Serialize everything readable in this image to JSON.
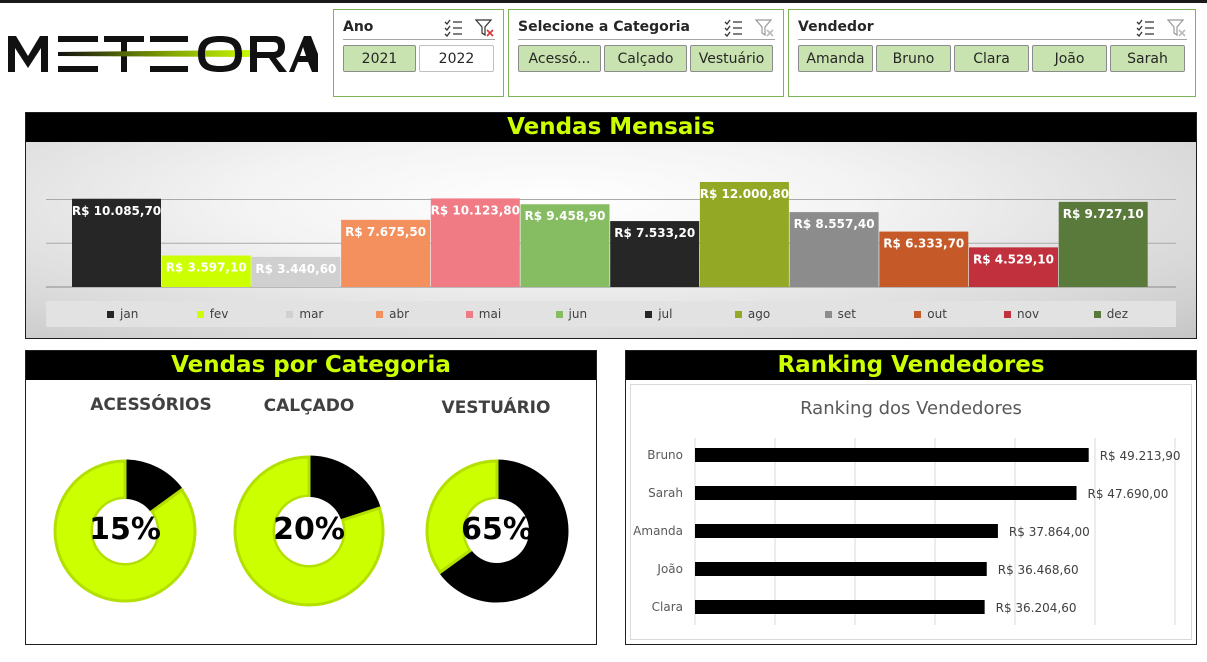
{
  "brand": {
    "logo_text": "METEORA",
    "accent": "#ccff00"
  },
  "slicers": {
    "ano": {
      "title": "Ano",
      "items": [
        {
          "label": "2021",
          "selected": true
        },
        {
          "label": "2022",
          "selected": false
        }
      ]
    },
    "categoria": {
      "title": "Selecione a Categoria",
      "items": [
        {
          "label": "Acessó...",
          "selected": true
        },
        {
          "label": "Calçado",
          "selected": true
        },
        {
          "label": "Vestuário",
          "selected": true
        }
      ]
    },
    "vendedor": {
      "title": "Vendedor",
      "items": [
        {
          "label": "Amanda",
          "selected": true
        },
        {
          "label": "Bruno",
          "selected": true
        },
        {
          "label": "Clara",
          "selected": true
        },
        {
          "label": "João",
          "selected": true
        },
        {
          "label": "Sarah",
          "selected": true
        }
      ]
    }
  },
  "monthly": {
    "title": "Vendas Mensais",
    "chart_data": {
      "type": "bar",
      "categories": [
        "jan",
        "fev",
        "mar",
        "abr",
        "mai",
        "jun",
        "jul",
        "ago",
        "set",
        "out",
        "nov",
        "dez"
      ],
      "values": [
        10085.7,
        3597.1,
        3440.6,
        7675.5,
        10123.8,
        9458.9,
        7533.2,
        12000.8,
        8557.4,
        6333.7,
        4529.1,
        9727.1
      ],
      "data_labels": [
        "R$ 10.085,70",
        "R$ 3.597,10",
        "R$ 3.440,60",
        "R$ 7.675,50",
        "R$ 10.123,80",
        "R$ 9.458,90",
        "R$ 7.533,20",
        "R$ 12.000,80",
        "R$ 8.557,40",
        "R$ 6.333,70",
        "R$ 4.529,10",
        "R$ 9.727,10"
      ],
      "colors": [
        "#262626",
        "#ccff00",
        "#d0d0d0",
        "#f4905d",
        "#f07b85",
        "#86bc62",
        "#262626",
        "#93a824",
        "#8c8c8c",
        "#c55a28",
        "#c0303d",
        "#5a7a3c"
      ],
      "label_colors": [
        "#ffffff",
        "#ffffff",
        "#ffffff",
        "#ffffff",
        "#ffffff",
        "#ffffff",
        "#ffffff",
        "#ffffff",
        "#ffffff",
        "#ffffff",
        "#ffffff",
        "#ffffff"
      ],
      "ylim": [
        0,
        12000
      ],
      "grid": true,
      "legend": "bottom"
    }
  },
  "categories_panel": {
    "title": "Vendas por Categoria",
    "chart_data": [
      {
        "type": "pie",
        "title": "ACESSÓRIOS",
        "label": "15%",
        "values": [
          15,
          85
        ],
        "colors": [
          "#000000",
          "#ccff00"
        ]
      },
      {
        "type": "pie",
        "title": "CALÇADO",
        "label": "20%",
        "values": [
          20,
          80
        ],
        "colors": [
          "#000000",
          "#ccff00"
        ]
      },
      {
        "type": "pie",
        "title": "VESTUÁRIO",
        "label": "65%",
        "values": [
          65,
          35
        ],
        "colors": [
          "#000000",
          "#ccff00"
        ]
      }
    ]
  },
  "ranking": {
    "title": "Ranking Vendedores",
    "chart_data": {
      "type": "bar",
      "orientation": "horizontal",
      "title": "Ranking dos Vendedores",
      "categories": [
        "Bruno",
        "Sarah",
        "Amanda",
        "João",
        "Clara"
      ],
      "values": [
        49213.9,
        47690.0,
        37864.0,
        36468.6,
        36204.6
      ],
      "data_labels": [
        "R$ 49.213,90",
        "R$ 47.690,00",
        "R$ 37.864,00",
        "R$ 36.468,60",
        "R$ 36.204,60"
      ],
      "xlim": [
        0,
        60000
      ],
      "grid": true,
      "color": "#000000"
    }
  }
}
